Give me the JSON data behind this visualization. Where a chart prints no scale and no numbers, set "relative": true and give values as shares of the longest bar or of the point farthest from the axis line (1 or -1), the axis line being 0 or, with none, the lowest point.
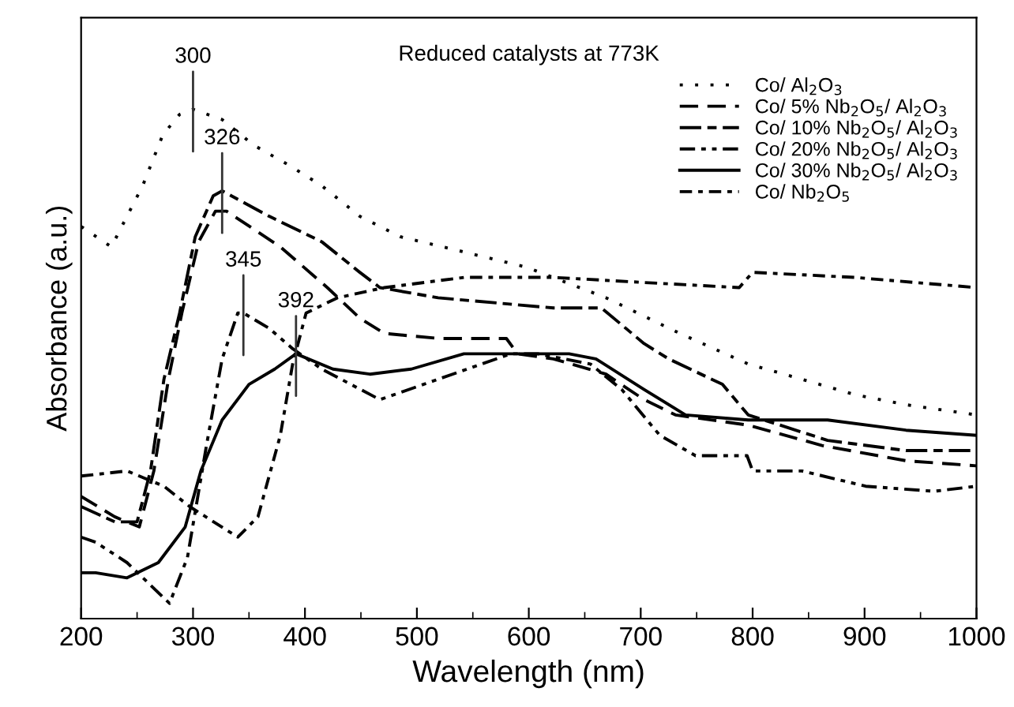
{
  "chart_data": {
    "type": "line",
    "title": "Reduced catalysts at 773K",
    "xlabel": "Wavelength (nm)",
    "ylabel": "Absorbance (a.u.)",
    "relative": true,
    "xlim": [
      200,
      1000
    ],
    "xticks": [
      200,
      300,
      400,
      500,
      600,
      700,
      800,
      900,
      1000
    ],
    "legend": "top right",
    "grid": false,
    "series": [
      {
        "name": "Co/ Al$_{2}$O$_{3}$",
        "color": "#000000",
        "line_style": "dotted",
        "x": [
          200,
          227,
          255,
          273,
          288,
          300,
          326,
          354,
          386,
          415,
          449,
          485,
          542,
          598,
          669,
          735,
          796,
          844,
          891,
          937,
          1000
        ],
        "values": [
          0.77,
          0.73,
          0.85,
          0.95,
          0.99,
          1.0,
          0.98,
          0.93,
          0.89,
          0.85,
          0.79,
          0.75,
          0.72,
          0.69,
          0.63,
          0.56,
          0.5,
          0.47,
          0.44,
          0.42,
          0.4
        ]
      },
      {
        "name": "Co/ 5% Nb$_{2}$O$_{5}$/ Al$_{2}$O$_{3}$",
        "color": "#000000",
        "line_style": "dashed",
        "x": [
          200,
          230,
          252,
          265,
          278,
          290,
          305,
          320,
          330,
          378,
          420,
          449,
          471,
          520,
          580,
          590,
          622,
          669,
          703,
          731,
          796,
          862,
          937,
          1000
        ],
        "values": [
          0.24,
          0.2,
          0.18,
          0.29,
          0.47,
          0.6,
          0.74,
          0.8,
          0.8,
          0.73,
          0.65,
          0.59,
          0.56,
          0.55,
          0.55,
          0.52,
          0.51,
          0.48,
          0.43,
          0.4,
          0.38,
          0.34,
          0.31,
          0.3
        ]
      },
      {
        "name": "Co/ 10% Nb$_{2}$O$_{5}$/ Al$_{2}$O$_{3}$",
        "color": "#000000",
        "line_style": "dashdot",
        "x": [
          200,
          230,
          250,
          262,
          274,
          288,
          302,
          318,
          326,
          368,
          415,
          449,
          467,
          519,
          622,
          665,
          703,
          725,
          773,
          796,
          867,
          937,
          1000
        ],
        "values": [
          0.22,
          0.19,
          0.19,
          0.29,
          0.47,
          0.6,
          0.75,
          0.83,
          0.84,
          0.79,
          0.74,
          0.68,
          0.65,
          0.63,
          0.61,
          0.61,
          0.54,
          0.51,
          0.46,
          0.4,
          0.35,
          0.33,
          0.33
        ]
      },
      {
        "name": "Co/ 20% Nb$_{2}$O$_{5}$/ Al$_{2}$O$_{3}$",
        "color": "#000000",
        "line_style": "dashdotdot",
        "x": [
          200,
          213,
          241,
          279,
          295,
          312,
          326,
          340,
          345,
          368,
          389,
          415,
          467,
          519,
          584,
          608,
          655,
          683,
          717,
          749,
          795,
          800,
          844,
          901,
          962,
          1000
        ],
        "values": [
          0.16,
          0.15,
          0.11,
          0.03,
          0.12,
          0.34,
          0.51,
          0.6,
          0.6,
          0.57,
          0.53,
          0.49,
          0.43,
          0.47,
          0.52,
          0.52,
          0.5,
          0.45,
          0.36,
          0.32,
          0.32,
          0.29,
          0.29,
          0.26,
          0.25,
          0.26
        ]
      },
      {
        "name": "Co/ 30% Nb$_{2}$O$_{5}$/ Al$_{2}$O$_{3}$",
        "color": "#000000",
        "line_style": "solid",
        "x": [
          200,
          213,
          241,
          269,
          293,
          307,
          326,
          350,
          373,
          392,
          425,
          458,
          495,
          542,
          590,
          636,
          660,
          703,
          740,
          796,
          867,
          937,
          1000
        ],
        "values": [
          0.09,
          0.09,
          0.08,
          0.11,
          0.18,
          0.29,
          0.39,
          0.46,
          0.49,
          0.52,
          0.49,
          0.48,
          0.49,
          0.52,
          0.52,
          0.52,
          0.51,
          0.45,
          0.4,
          0.39,
          0.39,
          0.37,
          0.36
        ]
      },
      {
        "name": "Co/ Nb$_{2}$O$_{5}$",
        "color": "#000000",
        "line_style": "loosedashdot",
        "x": [
          200,
          241,
          274,
          297,
          340,
          358,
          378,
          389,
          401,
          429,
          471,
          542,
          622,
          703,
          788,
          800,
          891,
          1000
        ],
        "values": [
          0.28,
          0.29,
          0.26,
          0.22,
          0.16,
          0.2,
          0.36,
          0.5,
          0.6,
          0.63,
          0.65,
          0.67,
          0.67,
          0.66,
          0.65,
          0.68,
          0.67,
          0.65
        ]
      }
    ],
    "annotations": [
      {
        "text": "300",
        "x": 300,
        "y": 1.0
      },
      {
        "text": "326",
        "x": 326,
        "y": 0.84
      },
      {
        "text": "345",
        "x": 345,
        "y": 0.6
      },
      {
        "text": "392",
        "x": 392,
        "y": 0.52
      }
    ]
  }
}
